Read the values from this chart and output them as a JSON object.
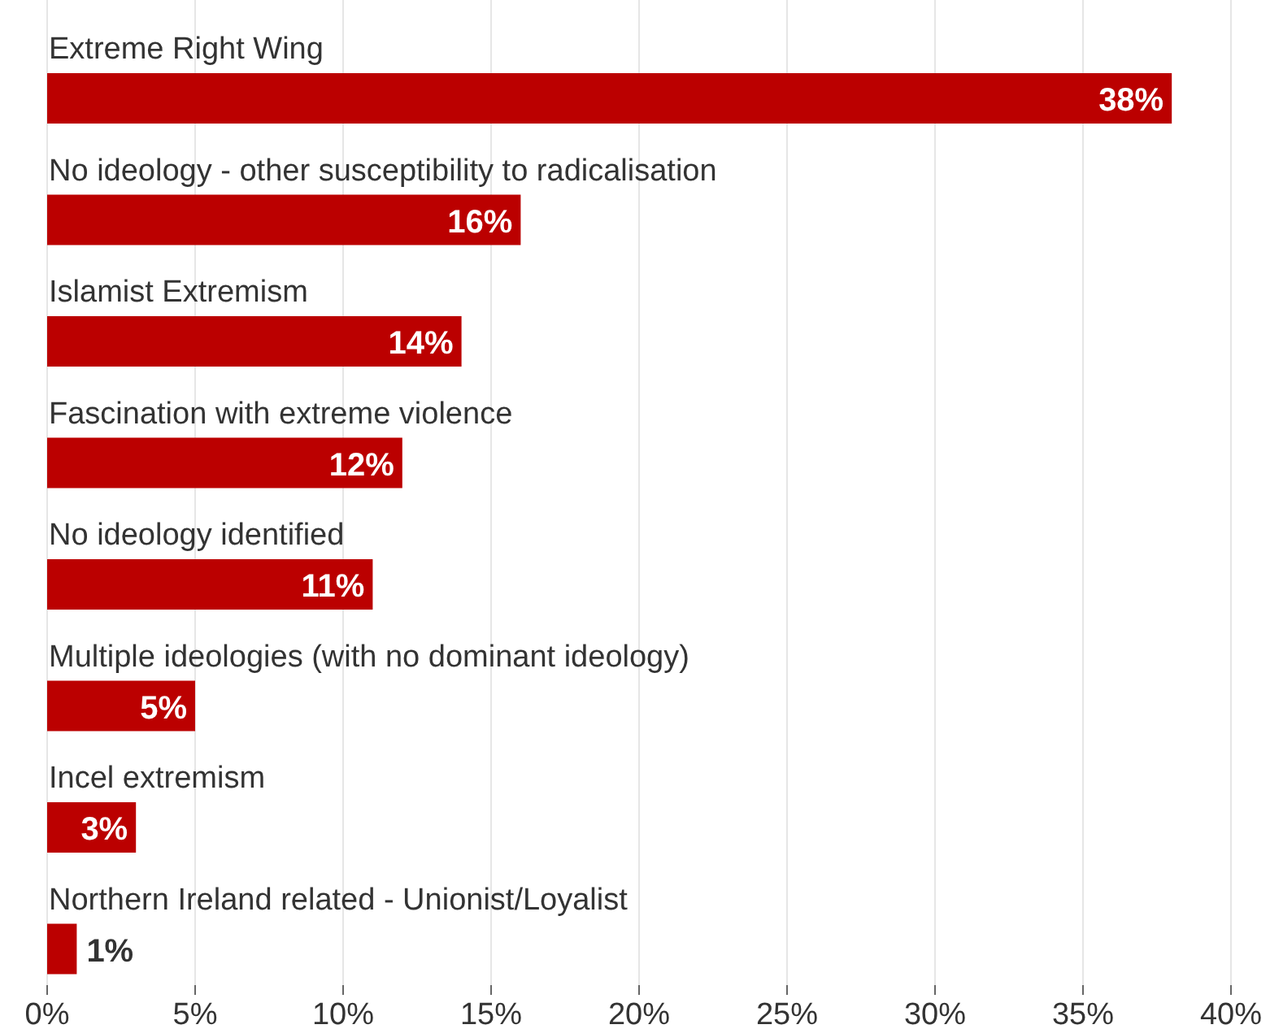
{
  "chart_data": {
    "type": "bar",
    "orientation": "horizontal",
    "categories": [
      "Extreme Right Wing",
      "No ideology - other susceptibility to radicalisation",
      "Islamist Extremism",
      "Fascination with extreme violence",
      "No ideology identified",
      "Multiple ideologies (with no dominant ideology)",
      "Incel extremism",
      "Northern Ireland related - Unionist/Loyalist"
    ],
    "values": [
      38,
      16,
      14,
      12,
      11,
      5,
      3,
      1
    ],
    "value_labels": [
      "38%",
      "16%",
      "14%",
      "12%",
      "11%",
      "5%",
      "3%",
      "1%"
    ],
    "color": "#bb0000",
    "xlim": [
      0,
      40
    ],
    "xticks": [
      {
        "value": 0,
        "label": "0%"
      },
      {
        "value": 5,
        "label": "5%"
      },
      {
        "value": 10,
        "label": "10%"
      },
      {
        "value": 15,
        "label": "15%"
      },
      {
        "value": 20,
        "label": "20%"
      },
      {
        "value": 25,
        "label": "25%"
      },
      {
        "value": 30,
        "label": "30%"
      },
      {
        "value": 35,
        "label": "35%"
      },
      {
        "value": 40,
        "label": "40%"
      }
    ],
    "grid": "x"
  }
}
